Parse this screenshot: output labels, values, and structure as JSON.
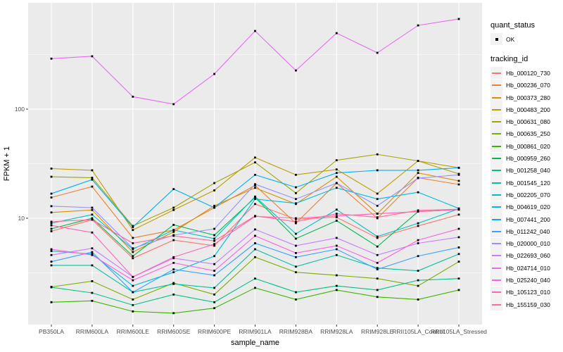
{
  "figure": {
    "panel_bg": "#EBEBEB",
    "grid_color": "#FFFFFF",
    "tick_text_color": "#4D4D4D",
    "axis_title_color": "#000000",
    "point_color": "#000000",
    "legend_key_bg": "#F2F2F2"
  },
  "legend": {
    "quant_status_title": "quant_status",
    "quant_status_items": [
      {
        "label": "OK",
        "symbol": "black-square-point"
      }
    ],
    "tracking_title": "tracking_id"
  },
  "chart_data": {
    "type": "line",
    "title": "",
    "xlabel": "sample_name",
    "ylabel": "FPKM + 1",
    "y_scale": "log10",
    "ylim": [
      1.06,
      940
    ],
    "grid": true,
    "legend_position": "right",
    "y_ticks": [
      {
        "label": "100",
        "value": 100
      },
      {
        "label": "10",
        "value": 10
      }
    ],
    "y_minor_values": [
      3.162,
      31.62,
      316.2
    ],
    "categories": [
      "PB350LA",
      "RRIM600LA",
      "RRIM600LE",
      "RRIM600SE",
      "RRIM600PE",
      "RRIM901LA",
      "RRIM928BA",
      "RRIM928LA",
      "RRIM928LE",
      "RRII105LA_Control",
      "RRII105LA_Stressed"
    ],
    "series": [
      {
        "name": "Hb_000120_730",
        "color": "#F8766D",
        "values": [
          7.6,
          9.7,
          4.3,
          6.3,
          5.6,
          13.5,
          9.8,
          10.2,
          6.6,
          8.5,
          10.8
        ]
      },
      {
        "name": "Hb_000236_070",
        "color": "#EA8331",
        "values": [
          15.5,
          19.5,
          6.6,
          7.8,
          12.5,
          20.0,
          9.0,
          21.0,
          10.0,
          23.5,
          20.4
        ]
      },
      {
        "name": "Hb_000373_280",
        "color": "#D89000",
        "values": [
          11.3,
          11.9,
          4.9,
          7.5,
          13.0,
          19.0,
          13.5,
          24.0,
          11.0,
          26.0,
          22.0
        ]
      },
      {
        "name": "Hb_000483_200",
        "color": "#C09B00",
        "values": [
          28.5,
          27.5,
          7.8,
          11.9,
          18.0,
          36.0,
          25.0,
          28.0,
          16.8,
          33.5,
          29.0
        ]
      },
      {
        "name": "Hb_000631_080",
        "color": "#A3A500",
        "values": [
          24.0,
          23.5,
          8.5,
          12.5,
          21.0,
          32.5,
          17.0,
          34.0,
          38.5,
          33.5,
          25.5
        ]
      },
      {
        "name": "Hb_000635_250",
        "color": "#7CAE00",
        "values": [
          2.35,
          2.65,
          1.8,
          2.55,
          2.0,
          4.4,
          3.2,
          3.0,
          2.8,
          2.4,
          4.0
        ]
      },
      {
        "name": "Hb_000861_020",
        "color": "#39B600",
        "values": [
          1.7,
          1.75,
          1.4,
          1.35,
          1.5,
          2.3,
          1.8,
          2.2,
          1.9,
          1.8,
          2.2
        ]
      },
      {
        "name": "Hb_000959_260",
        "color": "#00BB4E",
        "values": [
          8.0,
          10.0,
          4.5,
          8.7,
          7.0,
          15.5,
          6.5,
          9.5,
          5.5,
          11.5,
          12.0
        ]
      },
      {
        "name": "Hb_001258_040",
        "color": "#00C087",
        "values": [
          2.33,
          2.07,
          1.6,
          2.0,
          1.7,
          2.8,
          2.1,
          2.4,
          2.2,
          2.7,
          2.8
        ]
      },
      {
        "name": "Hb_001545_120",
        "color": "#00C1A3",
        "values": [
          3.7,
          3.7,
          2.1,
          2.5,
          2.3,
          5.2,
          3.6,
          4.6,
          3.5,
          3.3,
          4.7
        ]
      },
      {
        "name": "Hb_002205_070",
        "color": "#00BFC4",
        "values": [
          9.0,
          10.8,
          5.2,
          7.8,
          6.5,
          15.8,
          7.2,
          12.0,
          6.8,
          9.0,
          12.2
        ]
      },
      {
        "name": "Hb_004619_020",
        "color": "#00BAE0",
        "values": [
          5.0,
          4.7,
          2.4,
          3.2,
          4.5,
          15.0,
          13.7,
          19.0,
          15.0,
          17.3,
          12.3
        ]
      },
      {
        "name": "Hb_007441_200",
        "color": "#00B0F6",
        "values": [
          16.8,
          22.6,
          8.3,
          18.5,
          12.5,
          25.0,
          19.2,
          26.0,
          27.5,
          27.5,
          29.0
        ]
      },
      {
        "name": "Hb_011242_040",
        "color": "#35A2FF",
        "values": [
          4.0,
          4.9,
          2.1,
          3.4,
          3.0,
          5.9,
          4.4,
          5.2,
          3.4,
          4.5,
          5.4
        ]
      },
      {
        "name": "Hb_020000_010",
        "color": "#9590FF",
        "values": [
          12.9,
          12.5,
          5.3,
          7.0,
          8.0,
          20.5,
          15.0,
          21.0,
          13.0,
          23.3,
          25.0
        ]
      },
      {
        "name": "Hb_022693_060",
        "color": "#C77CFF",
        "values": [
          4.6,
          5.3,
          2.9,
          4.3,
          3.8,
          7.9,
          5.6,
          6.6,
          4.6,
          5.9,
          6.7
        ]
      },
      {
        "name": "Hb_024714_010",
        "color": "#E76BF3",
        "values": [
          290,
          305,
          130,
          111,
          210,
          520,
          226,
          497,
          328,
          585,
          670
        ]
      },
      {
        "name": "Hb_025240_040",
        "color": "#FA62DB",
        "values": [
          5.2,
          4.6,
          2.7,
          3.9,
          3.3,
          6.9,
          4.8,
          5.6,
          3.9,
          6.3,
          8.0
        ]
      },
      {
        "name": "Hb_105123_010",
        "color": "#FF62BC",
        "values": [
          8.6,
          7.4,
          2.9,
          4.4,
          5.8,
          10.4,
          10.0,
          10.5,
          11.0,
          11.5,
          12.0
        ]
      },
      {
        "name": "Hb_155159_030",
        "color": "#FF6A98",
        "values": [
          9.3,
          9.7,
          5.9,
          6.9,
          6.2,
          10.5,
          9.3,
          11.0,
          10.2,
          11.8,
          12.1
        ]
      }
    ]
  }
}
